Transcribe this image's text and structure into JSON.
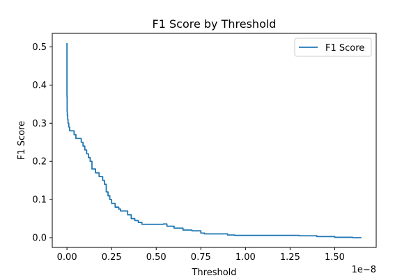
{
  "chart_data": {
    "type": "line",
    "title": "F1 Score by Threshold",
    "xlabel": "Threshold",
    "ylabel": "F1 Score",
    "x_offset_label": "1e−8",
    "xlim": [
      -0.0825,
      1.7325
    ],
    "ylim": [
      -0.0255,
      0.5355
    ],
    "xticks": [
      0.0,
      0.25,
      0.5,
      0.75,
      1.0,
      1.25,
      1.5
    ],
    "xtick_labels": [
      "0.00",
      "0.25",
      "0.50",
      "0.75",
      "1.00",
      "1.25",
      "1.50"
    ],
    "yticks": [
      0.0,
      0.1,
      0.2,
      0.3,
      0.4,
      0.5
    ],
    "ytick_labels": [
      "0.0",
      "0.1",
      "0.2",
      "0.3",
      "0.4",
      "0.5"
    ],
    "grid": false,
    "legend_position": "top-right",
    "series": [
      {
        "name": "F1 Score",
        "color": "#1f77b4",
        "x": [
          0.0,
          0.0,
          0.001,
          0.002,
          0.004,
          0.006,
          0.008,
          0.01,
          0.015,
          0.02,
          0.03,
          0.04,
          0.05,
          0.06,
          0.07,
          0.08,
          0.09,
          0.1,
          0.11,
          0.12,
          0.13,
          0.14,
          0.15,
          0.16,
          0.17,
          0.18,
          0.19,
          0.2,
          0.21,
          0.22,
          0.23,
          0.24,
          0.25,
          0.26,
          0.27,
          0.28,
          0.29,
          0.3,
          0.32,
          0.34,
          0.36,
          0.38,
          0.4,
          0.42,
          0.45,
          0.5,
          0.54,
          0.56,
          0.58,
          0.6,
          0.65,
          0.7,
          0.75,
          0.77,
          0.8,
          0.9,
          0.94,
          1.0,
          1.1,
          1.22,
          1.3,
          1.4,
          1.5,
          1.6,
          1.65
        ],
        "y": [
          0.51,
          0.37,
          0.33,
          0.32,
          0.31,
          0.3,
          0.3,
          0.29,
          0.28,
          0.28,
          0.28,
          0.27,
          0.26,
          0.26,
          0.26,
          0.25,
          0.24,
          0.23,
          0.22,
          0.21,
          0.2,
          0.18,
          0.18,
          0.17,
          0.17,
          0.16,
          0.16,
          0.15,
          0.14,
          0.12,
          0.11,
          0.1,
          0.09,
          0.09,
          0.08,
          0.08,
          0.075,
          0.07,
          0.07,
          0.06,
          0.05,
          0.045,
          0.04,
          0.035,
          0.035,
          0.035,
          0.036,
          0.03,
          0.03,
          0.025,
          0.02,
          0.018,
          0.012,
          0.01,
          0.01,
          0.007,
          0.006,
          0.006,
          0.006,
          0.006,
          0.005,
          0.003,
          0.001,
          0.0,
          0.0
        ]
      }
    ]
  }
}
